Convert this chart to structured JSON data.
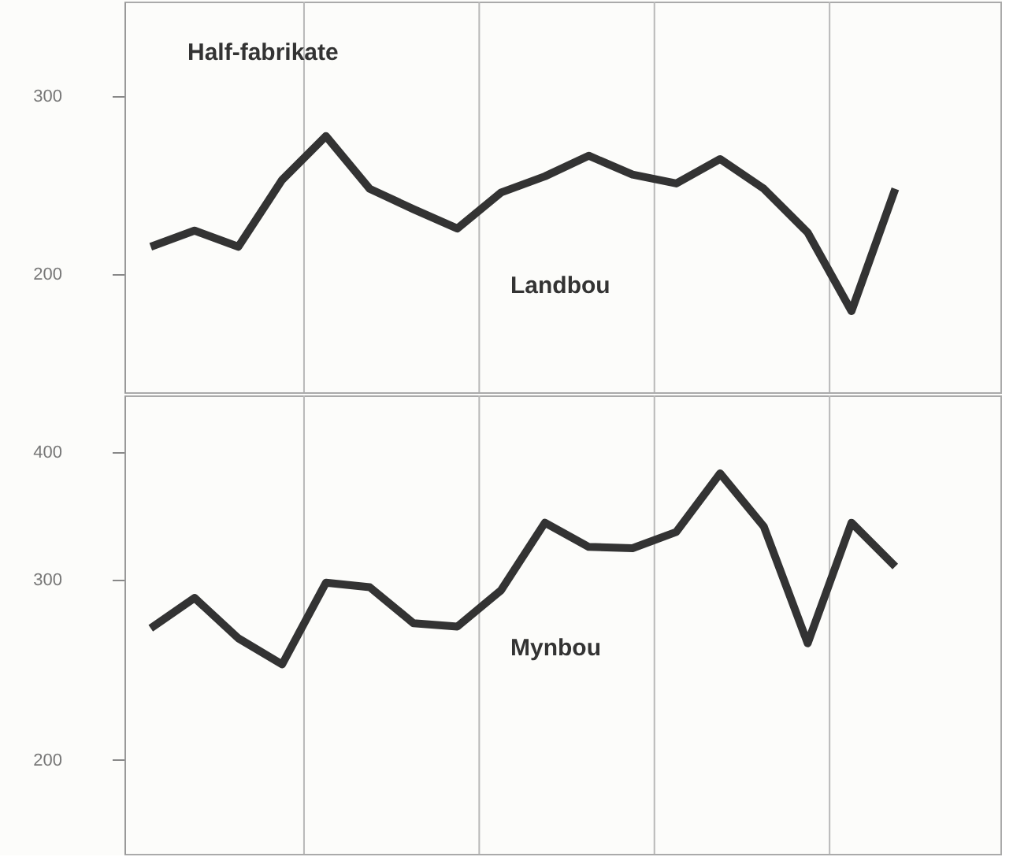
{
  "chart_data": [
    {
      "type": "line",
      "title": "Half-fabrikate",
      "log": "y",
      "categories": [
        null,
        null,
        null,
        null,
        null,
        null,
        null,
        null,
        null,
        null,
        null,
        null,
        null,
        null,
        null,
        null,
        null,
        null
      ],
      "ylim": [
        153,
        372
      ],
      "yticks": [
        200,
        300
      ],
      "grid": "x",
      "line_style": "solid",
      "series": [
        {
          "name": "Landbou",
          "color": "#333333",
          "values": [
            213,
            221,
            213,
            248,
            274,
            243,
            232,
            222,
            241,
            250,
            262,
            251,
            246,
            260,
            243,
            220,
            184,
            243
          ]
        }
      ]
    },
    {
      "type": "line",
      "log": "y",
      "categories": [
        null,
        null,
        null,
        null,
        null,
        null,
        null,
        null,
        null,
        null,
        null,
        null,
        null,
        null,
        null,
        null,
        null,
        null
      ],
      "ylim": [
        162,
        454
      ],
      "yticks": [
        200,
        300,
        400
      ],
      "grid": "x",
      "line_style": "solid",
      "series": [
        {
          "name": "Mynbou",
          "color": "#333333",
          "values": [
            269,
            288,
            263,
            248,
            298,
            295,
            272,
            270,
            293,
            341,
            323,
            322,
            334,
            381,
            338,
            260,
            341,
            309
          ]
        }
      ]
    }
  ]
}
